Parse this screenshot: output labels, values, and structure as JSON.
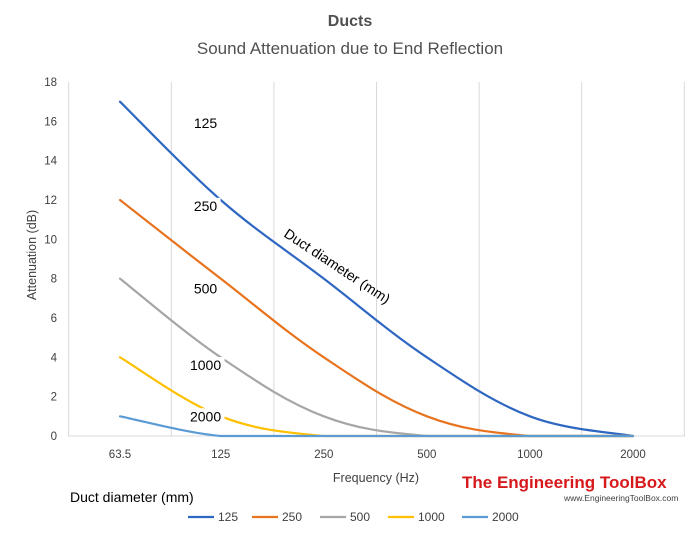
{
  "chart_data": {
    "type": "line",
    "title": "Ducts",
    "subtitle": "Sound Attenuation due to End Reflection",
    "xlabel": "Frequency (Hz)",
    "ylabel": "Attenuation (dB)",
    "x_scale": "log2",
    "categories": [
      "63.5",
      "125",
      "250",
      "500",
      "1000",
      "2000"
    ],
    "x": [
      63.5,
      125,
      250,
      500,
      1000,
      2000
    ],
    "ylim": [
      0,
      18
    ],
    "yticks": [
      "0",
      "2",
      "4",
      "6",
      "8",
      "10",
      "12",
      "14",
      "16",
      "18"
    ],
    "grid": {
      "vertical": true,
      "horizontal": false
    },
    "annotation": "Duct diameter (mm)",
    "legend": {
      "title": "Duct diameter (mm)",
      "position": "bottom"
    },
    "series": [
      {
        "name": "125",
        "color": "#2e67c2",
        "label": "125",
        "points": [
          [
            63.5,
            17
          ],
          [
            125,
            12
          ],
          [
            250,
            8
          ],
          [
            500,
            4
          ],
          [
            1000,
            1
          ],
          [
            2000,
            0
          ]
        ]
      },
      {
        "name": "250",
        "color": "#e7731f",
        "label": "250",
        "points": [
          [
            63.5,
            12
          ],
          [
            125,
            8
          ],
          [
            250,
            4
          ],
          [
            500,
            1
          ],
          [
            1000,
            0
          ],
          [
            2000,
            0
          ]
        ]
      },
      {
        "name": "500",
        "color": "#a6a6a6",
        "label": "500",
        "points": [
          [
            63.5,
            8
          ],
          [
            125,
            4
          ],
          [
            250,
            1
          ],
          [
            500,
            0
          ],
          [
            1000,
            0
          ],
          [
            2000,
            0
          ]
        ]
      },
      {
        "name": "1000",
        "color": "#ffc000",
        "label": "1000",
        "points": [
          [
            63.5,
            4
          ],
          [
            125,
            1
          ],
          [
            250,
            0
          ],
          [
            500,
            0
          ],
          [
            1000,
            0
          ],
          [
            2000,
            0
          ]
        ]
      },
      {
        "name": "2000",
        "color": "#5b9bd5",
        "label": "2000",
        "points": [
          [
            63.5,
            1
          ],
          [
            125,
            0
          ],
          [
            250,
            0
          ],
          [
            500,
            0
          ],
          [
            1000,
            0
          ],
          [
            2000,
            0
          ]
        ]
      }
    ]
  },
  "branding": {
    "name": "The Engineering ToolBox",
    "url": "www.EngineeringToolBox.com"
  }
}
